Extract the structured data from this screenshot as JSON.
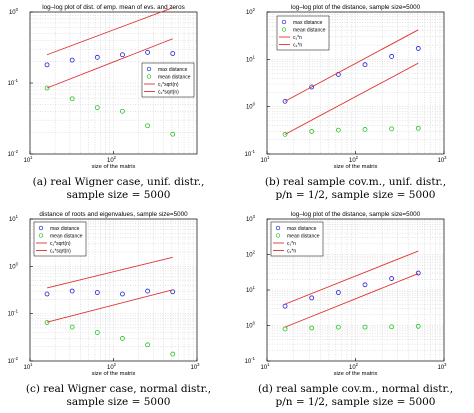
{
  "colors": {
    "max": "#1f1fd6",
    "mean": "#22c422",
    "line": "#e03030",
    "grid": "#c8c8c8"
  },
  "captions": [
    {
      "line1": "(a) real Wigner case, unif. distr.,",
      "line2": "sample size = 5000"
    },
    {
      "line1": "(b) real sample cov.m., unif. distr.,",
      "line2": "p/n = 1/2, sample size = 5000"
    },
    {
      "line1": "(c) real Wigner case, normal distr.,",
      "line2": "sample size = 5000"
    },
    {
      "line1": "(d) real sample cov.m., normal distr.,",
      "line2": "p/n = 1/2, sample size = 5000"
    }
  ],
  "chart_data": [
    {
      "type": "scatter",
      "title": "log–log plot of dist. of emp. mean of evs. and zeros",
      "xlabel": "size of the matrix",
      "ylabel": "",
      "x_scale": "log",
      "y_scale": "log",
      "xlim": [
        10,
        1000
      ],
      "ylim": [
        0.01,
        1
      ],
      "x_ticks": [
        {
          "v": 10,
          "b": "10",
          "e": "1"
        },
        {
          "v": 100,
          "b": "10",
          "e": "2"
        }
      ],
      "y_ticks": [
        {
          "v": 0.01,
          "b": "10",
          "e": "-2"
        },
        {
          "v": 0.1,
          "b": "10",
          "e": "-1"
        },
        {
          "v": 1,
          "b": "10",
          "e": "0"
        }
      ],
      "legend": {
        "position": "right",
        "entries": [
          {
            "label": "max distance",
            "kind": "marker",
            "color": "max"
          },
          {
            "label": "mean distance",
            "kind": "marker",
            "color": "mean"
          },
          {
            "label": "c₁*sqrt(n)",
            "kind": "line",
            "color": "line"
          },
          {
            "label": "c₂*sqrt(n)",
            "kind": "line",
            "color": "line"
          }
        ]
      },
      "series": [
        {
          "name": "max distance",
          "color": "max",
          "kind": "marker",
          "x": [
            16,
            32,
            64,
            128,
            256,
            512
          ],
          "y": [
            0.18,
            0.21,
            0.23,
            0.25,
            0.27,
            0.26
          ]
        },
        {
          "name": "mean distance",
          "color": "mean",
          "kind": "marker",
          "x": [
            16,
            32,
            64,
            128,
            256,
            512
          ],
          "y": [
            0.085,
            0.06,
            0.045,
            0.04,
            0.025,
            0.019
          ]
        },
        {
          "name": "c₁*sqrt(n)",
          "color": "line",
          "kind": "line",
          "x": [
            16,
            512
          ],
          "y": [
            0.25,
            1.15
          ]
        },
        {
          "name": "c₂*sqrt(n)",
          "color": "line",
          "kind": "line",
          "x": [
            16,
            512
          ],
          "y": [
            0.085,
            0.42
          ]
        }
      ]
    },
    {
      "type": "scatter",
      "title": "log–log plot of the distance, sample size=5000",
      "xlabel": "size of the matrix",
      "ylabel": "",
      "x_scale": "log",
      "y_scale": "log",
      "xlim": [
        10,
        1000
      ],
      "ylim": [
        0.1,
        100
      ],
      "x_ticks": [
        {
          "v": 10,
          "b": "10",
          "e": "1"
        },
        {
          "v": 100,
          "b": "10",
          "e": "2"
        },
        {
          "v": 1000,
          "b": "10",
          "e": "3"
        }
      ],
      "y_ticks": [
        {
          "v": 0.1,
          "b": "10",
          "e": "-1"
        },
        {
          "v": 1,
          "b": "10",
          "e": "0"
        },
        {
          "v": 10,
          "b": "10",
          "e": "1"
        },
        {
          "v": 100,
          "b": "10",
          "e": "2"
        }
      ],
      "legend": {
        "position": "top-left",
        "entries": [
          {
            "label": "max distance",
            "kind": "marker",
            "color": "max"
          },
          {
            "label": "mean distance",
            "kind": "marker",
            "color": "mean"
          },
          {
            "label": "c₁*n",
            "kind": "line",
            "color": "line"
          },
          {
            "label": "c₂*n",
            "kind": "line",
            "color": "line"
          }
        ]
      },
      "series": [
        {
          "name": "max distance",
          "color": "max",
          "kind": "marker",
          "x": [
            16,
            32,
            64,
            128,
            256,
            512
          ],
          "y": [
            1.3,
            2.6,
            4.8,
            7.7,
            11.5,
            17
          ]
        },
        {
          "name": "mean distance",
          "color": "mean",
          "kind": "marker",
          "x": [
            16,
            32,
            64,
            128,
            256,
            512
          ],
          "y": [
            0.26,
            0.3,
            0.32,
            0.33,
            0.34,
            0.35
          ]
        },
        {
          "name": "c₁*n",
          "color": "line",
          "kind": "line",
          "x": [
            16,
            512
          ],
          "y": [
            1.3,
            42
          ]
        },
        {
          "name": "c₂*n",
          "color": "line",
          "kind": "line",
          "x": [
            16,
            512
          ],
          "y": [
            0.26,
            8.3
          ]
        }
      ]
    },
    {
      "type": "scatter",
      "title": "distance of roots and eigenvalues, sample size=5000",
      "xlabel": "size of the matrix",
      "ylabel": "",
      "x_scale": "log",
      "y_scale": "log",
      "xlim": [
        10,
        1000
      ],
      "ylim": [
        0.01,
        10
      ],
      "x_ticks": [
        {
          "v": 10,
          "b": "10",
          "e": "1"
        },
        {
          "v": 100,
          "b": "10",
          "e": "2"
        },
        {
          "v": 1000,
          "b": "10",
          "e": "3"
        }
      ],
      "y_ticks": [
        {
          "v": 0.01,
          "b": "10",
          "e": "-2"
        },
        {
          "v": 0.1,
          "b": "10",
          "e": "-1"
        },
        {
          "v": 1,
          "b": "10",
          "e": "0"
        },
        {
          "v": 10,
          "b": "10",
          "e": "1"
        }
      ],
      "legend": {
        "position": "top-left",
        "entries": [
          {
            "label": "max distance",
            "kind": "marker",
            "color": "max"
          },
          {
            "label": "mean distance",
            "kind": "marker",
            "color": "mean"
          },
          {
            "label": "c₁*sqrt(n)",
            "kind": "line",
            "color": "line"
          },
          {
            "label": "c₂*sqrt(n)",
            "kind": "line",
            "color": "line"
          }
        ]
      },
      "series": [
        {
          "name": "max distance",
          "color": "max",
          "kind": "marker",
          "x": [
            16,
            32,
            64,
            128,
            256,
            512
          ],
          "y": [
            0.26,
            0.3,
            0.28,
            0.26,
            0.3,
            0.29
          ]
        },
        {
          "name": "mean distance",
          "color": "mean",
          "kind": "marker",
          "x": [
            16,
            32,
            64,
            128,
            256,
            512
          ],
          "y": [
            0.065,
            0.052,
            0.04,
            0.03,
            0.022,
            0.014
          ]
        },
        {
          "name": "c₁*sqrt(n)",
          "color": "line",
          "kind": "line",
          "x": [
            16,
            512
          ],
          "y": [
            0.35,
            1.55
          ]
        },
        {
          "name": "c₂*sqrt(n)",
          "color": "line",
          "kind": "line",
          "x": [
            16,
            512
          ],
          "y": [
            0.066,
            0.32
          ]
        }
      ]
    },
    {
      "type": "scatter",
      "title": "log–log plot of the distance, sample size=5000",
      "xlabel": "size of the matrix",
      "ylabel": "",
      "x_scale": "log",
      "y_scale": "log",
      "xlim": [
        10,
        1000
      ],
      "ylim": [
        0.1,
        1000
      ],
      "x_ticks": [
        {
          "v": 10,
          "b": "10",
          "e": "1"
        },
        {
          "v": 100,
          "b": "10",
          "e": "2"
        },
        {
          "v": 1000,
          "b": "10",
          "e": "3"
        }
      ],
      "y_ticks": [
        {
          "v": 0.1,
          "b": "10",
          "e": "-1"
        },
        {
          "v": 1,
          "b": "10",
          "e": "0"
        },
        {
          "v": 10,
          "b": "10",
          "e": "1"
        },
        {
          "v": 100,
          "b": "10",
          "e": "2"
        },
        {
          "v": 1000,
          "b": "10",
          "e": "3"
        }
      ],
      "legend": {
        "position": "top-left",
        "entries": [
          {
            "label": "max distance",
            "kind": "marker",
            "color": "max"
          },
          {
            "label": "mean distance",
            "kind": "marker",
            "color": "mean"
          },
          {
            "label": "c₁*n",
            "kind": "line",
            "color": "line"
          },
          {
            "label": "c₂*n",
            "kind": "line",
            "color": "line"
          }
        ]
      },
      "series": [
        {
          "name": "max distance",
          "color": "max",
          "kind": "marker",
          "x": [
            16,
            32,
            64,
            128,
            256,
            512
          ],
          "y": [
            3.5,
            6,
            8.5,
            14,
            21,
            30
          ]
        },
        {
          "name": "mean distance",
          "color": "mean",
          "kind": "marker",
          "x": [
            16,
            32,
            64,
            128,
            256,
            512
          ],
          "y": [
            0.8,
            0.85,
            0.9,
            0.9,
            0.92,
            0.95
          ]
        },
        {
          "name": "c₁*n",
          "color": "line",
          "kind": "line",
          "x": [
            16,
            512
          ],
          "y": [
            4,
            125
          ]
        },
        {
          "name": "c₂*n",
          "color": "line",
          "kind": "line",
          "x": [
            16,
            512
          ],
          "y": [
            0.9,
            29
          ]
        }
      ]
    }
  ]
}
